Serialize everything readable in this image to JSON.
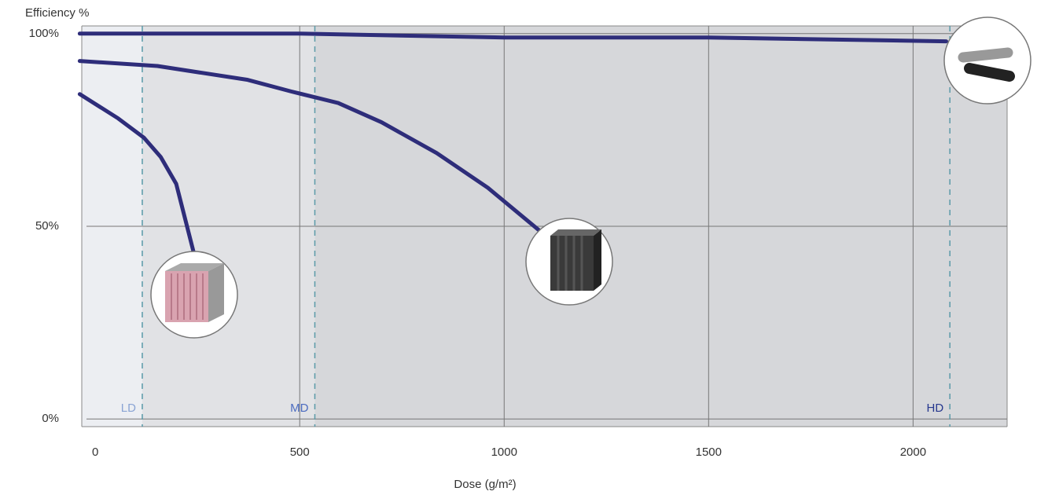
{
  "chart_data": {
    "type": "line",
    "y_label": "Efficiency %",
    "x_label": "Dose (g/m²)",
    "xlim": [
      -33,
      2230
    ],
    "ylim": [
      -2,
      102
    ],
    "xticks": [
      0,
      500,
      1000,
      1500,
      2000
    ],
    "yticks": [
      {
        "value": 0,
        "label": "0%"
      },
      {
        "value": 50,
        "label": "50%"
      },
      {
        "value": 100,
        "label": "100%"
      }
    ],
    "grid": true,
    "zones": [
      {
        "label": "LD",
        "end": 115,
        "fill": "#eceef2",
        "color": "#8aa4d4"
      },
      {
        "label": "MD",
        "end": 537,
        "fill": "#e1e2e5",
        "color": "#4c6cc0"
      },
      {
        "label": "HD",
        "end": 2090,
        "fill": "#d6d7da",
        "color": "#26378e"
      }
    ],
    "series": [
      {
        "color": "#2e2d7a",
        "x": [
          -38,
          500,
          1000,
          1500,
          2081
        ],
        "values": [
          100,
          100,
          99,
          99,
          98
        ]
      },
      {
        "color": "#2e2d7a",
        "x": [
          -38,
          152,
          373,
          479,
          594,
          700,
          835,
          960,
          1085
        ],
        "values": [
          92.9,
          91.6,
          88,
          85,
          82,
          77,
          69,
          60,
          49
        ]
      },
      {
        "color": "#2e2d7a",
        "x": [
          -38,
          56,
          119,
          160,
          198,
          240
        ],
        "values": [
          84.3,
          78,
          73,
          68,
          61,
          43.5
        ]
      }
    ]
  }
}
